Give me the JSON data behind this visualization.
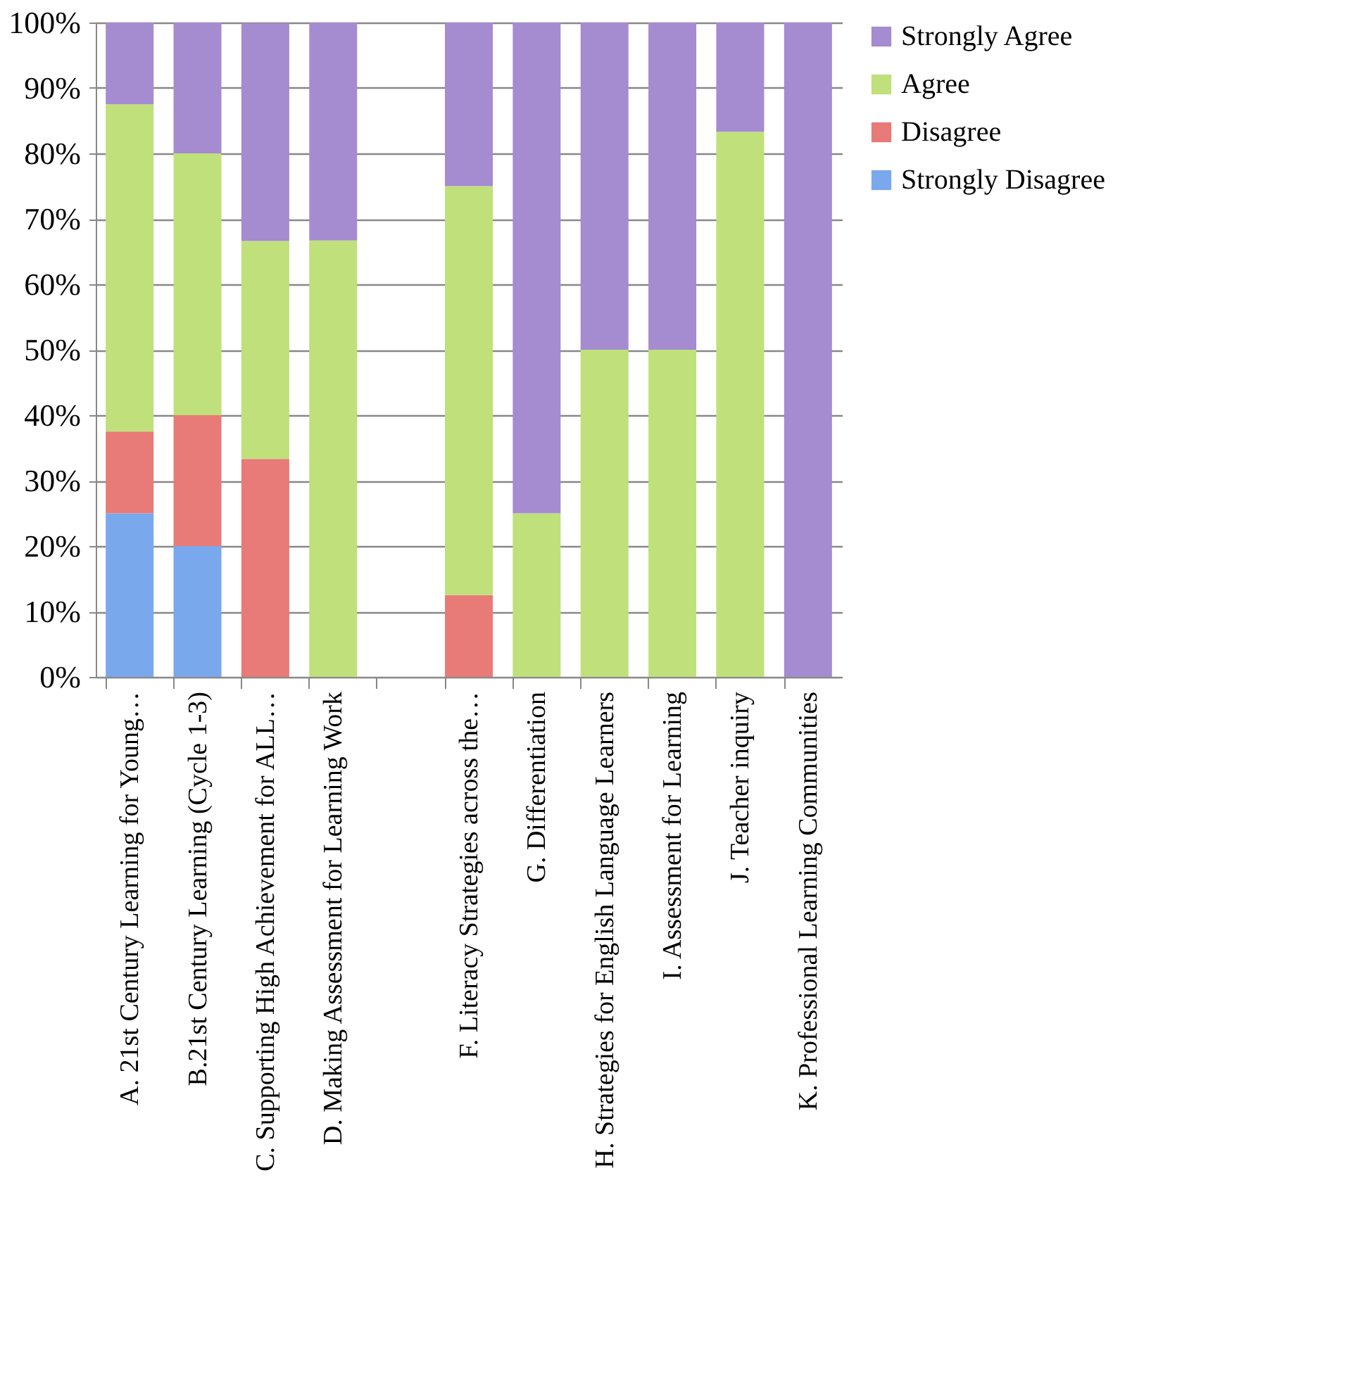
{
  "chart_data": {
    "type": "bar",
    "stacked": true,
    "categories": [
      "A. 21st Century Learning for Young…",
      "B.21st Century Learning (Cycle 1-3)",
      "C.   Supporting High Achievement for ALL…",
      "D. Making Assessment for Learning Work",
      null,
      "F.    Literacy Strategies across the…",
      "G.    Differentiation",
      "H.  Strategies for English Language Learners",
      "I.     Assessment for Learning",
      "J.     Teacher inquiry",
      "K.   Professional Learning Communities"
    ],
    "series": [
      {
        "name": "Strongly Disagree",
        "color": "#7aa8ec",
        "values": [
          25,
          20,
          0,
          0,
          null,
          0,
          0,
          0,
          0,
          0,
          0
        ]
      },
      {
        "name": "Disagree",
        "color": "#e87a78",
        "values": [
          12.5,
          20,
          33.3,
          0,
          null,
          12.5,
          0,
          0,
          0,
          0,
          0
        ]
      },
      {
        "name": "Agree",
        "color": "#bfe07a",
        "values": [
          50,
          40,
          33.3,
          66.7,
          null,
          62.5,
          25,
          50,
          50,
          83.3,
          0
        ]
      },
      {
        "name": "Strongly Agree",
        "color": "#a58bd0",
        "values": [
          12.5,
          20,
          33.3,
          33.3,
          null,
          25,
          75,
          50,
          50,
          16.7,
          100
        ]
      }
    ],
    "ylim": [
      0,
      100
    ],
    "yticks": [
      {
        "value": 0,
        "label": "0%"
      },
      {
        "value": 10,
        "label": "10%"
      },
      {
        "value": 20,
        "label": "20%"
      },
      {
        "value": 30,
        "label": "30%"
      },
      {
        "value": 40,
        "label": "40%"
      },
      {
        "value": 50,
        "label": "50%"
      },
      {
        "value": 60,
        "label": "60%"
      },
      {
        "value": 70,
        "label": "70%"
      },
      {
        "value": 80,
        "label": "80%"
      },
      {
        "value": 90,
        "label": "90%"
      },
      {
        "value": 100,
        "label": "100%"
      }
    ],
    "grid": "y",
    "legend": "right"
  }
}
